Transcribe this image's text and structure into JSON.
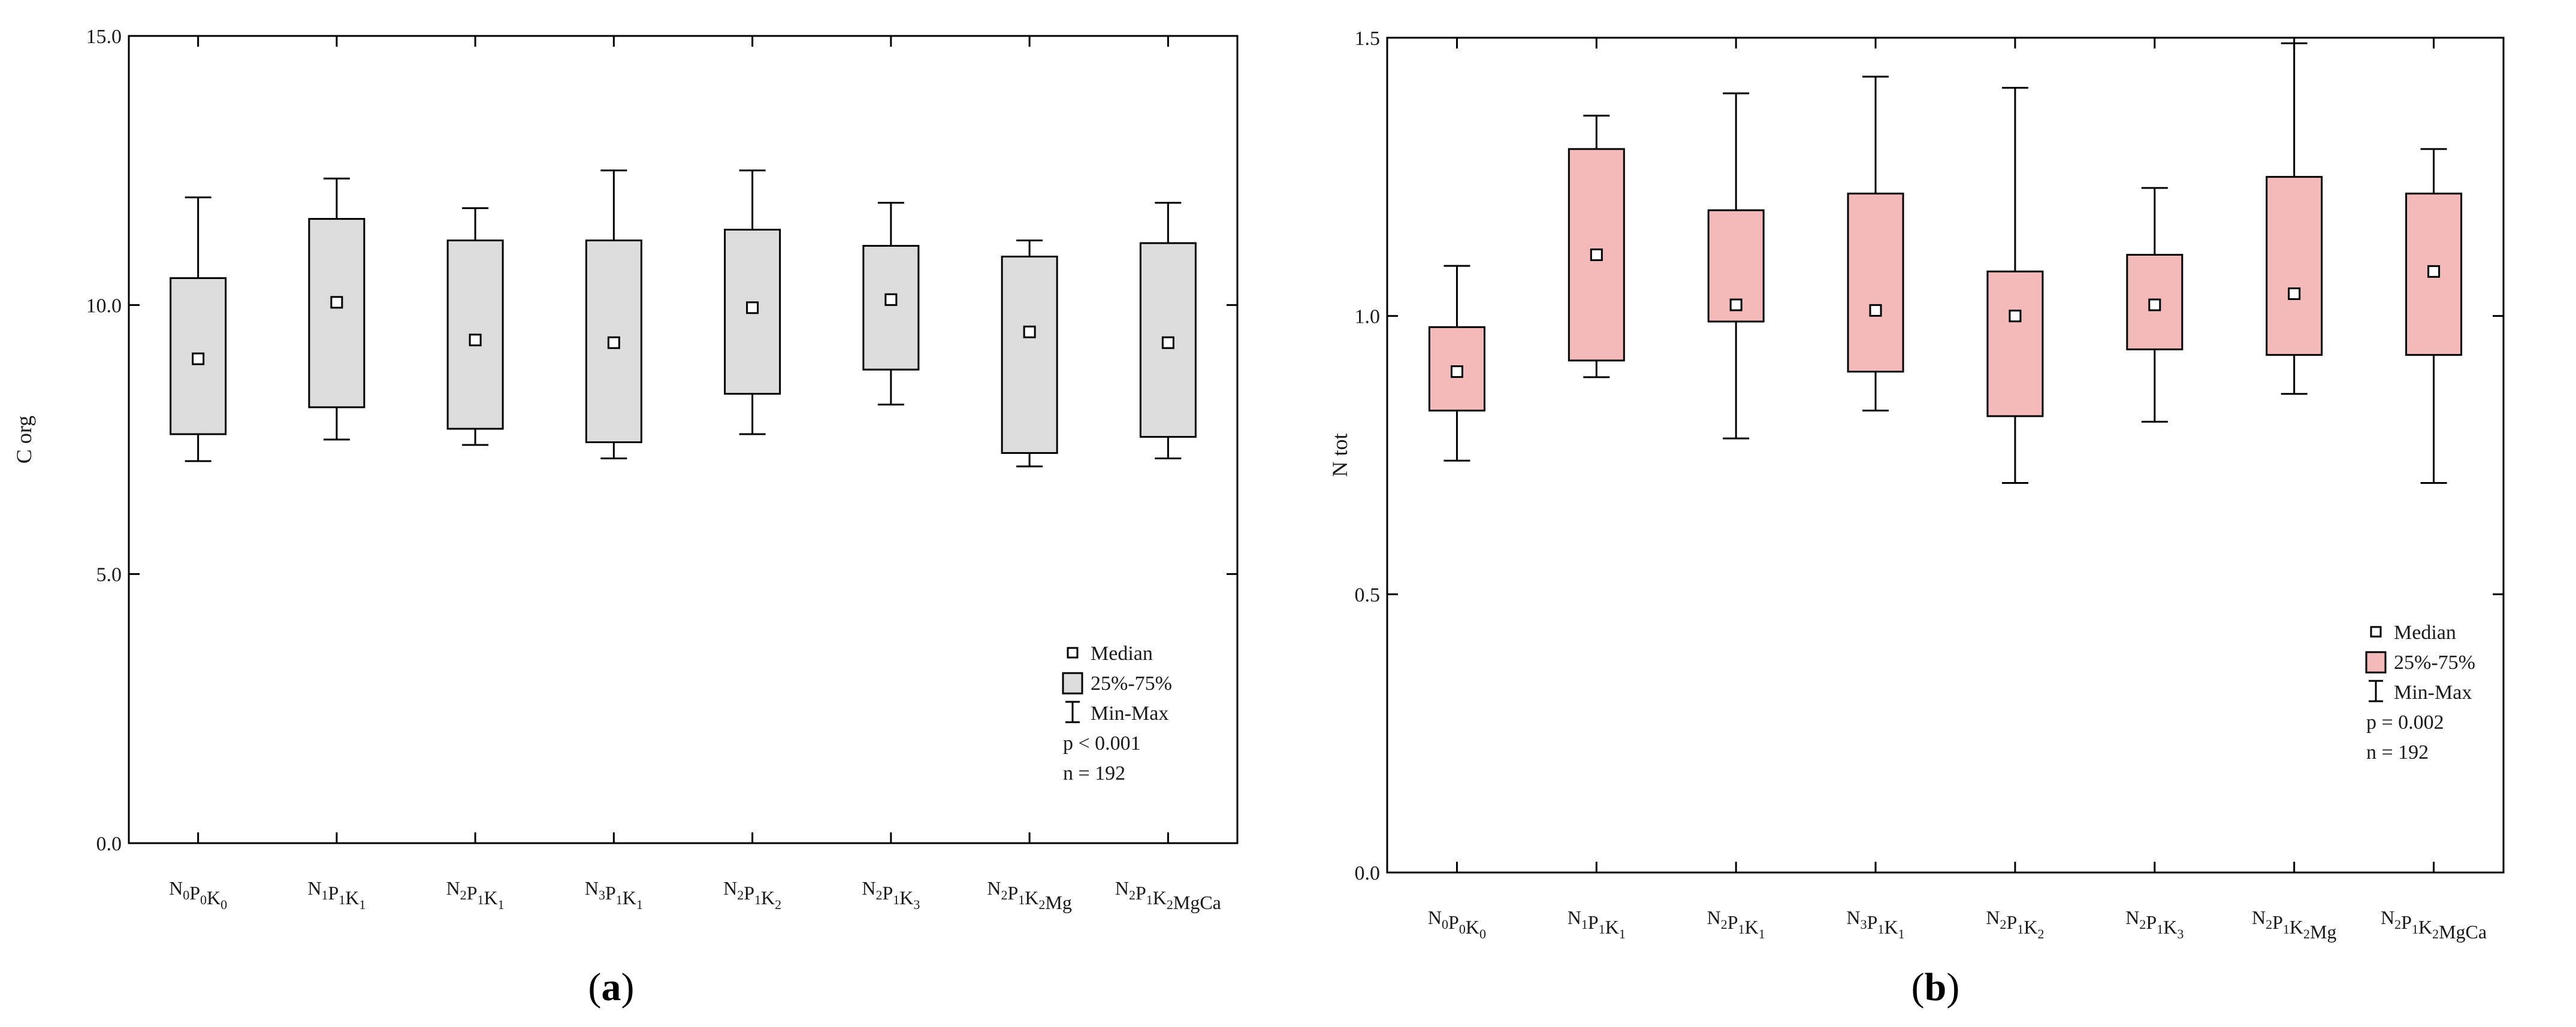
{
  "categories": [
    [
      "N",
      "0",
      "P",
      "0",
      "K",
      "0"
    ],
    [
      "N",
      "1",
      "P",
      "1",
      "K",
      "1"
    ],
    [
      "N",
      "2",
      "P",
      "1",
      "K",
      "1"
    ],
    [
      "N",
      "3",
      "P",
      "1",
      "K",
      "1"
    ],
    [
      "N",
      "2",
      "P",
      "1",
      "K",
      "2"
    ],
    [
      "N",
      "2",
      "P",
      "1",
      "K",
      "3"
    ],
    [
      "N",
      "2",
      "P",
      "1",
      "K",
      "2",
      "Mg",
      ""
    ],
    [
      "N",
      "2",
      "P",
      "1",
      "K",
      "2",
      "MgCa",
      ""
    ]
  ],
  "category_text": [
    "N0P0K0",
    "N1P1K1",
    "N2P1K1",
    "N3P1K1",
    "N2P1K2",
    "N2P1K3",
    "N2P1K2Mg",
    "N2P1K2MgCa"
  ],
  "chart_data": [
    {
      "type": "box",
      "panel": "a",
      "panel_label": "(a)",
      "ylabel": "C org",
      "ylim": [
        0.0,
        15.0
      ],
      "yticks": [
        "0.0",
        "5.0",
        "10.0",
        "15.0"
      ],
      "ytick_values": [
        0,
        5,
        10,
        15
      ],
      "fill": "#dcdcdc",
      "stats": [
        {
          "min": 7.1,
          "q1": 7.6,
          "median": 9.0,
          "q3": 10.5,
          "max": 12.0
        },
        {
          "min": 7.5,
          "q1": 8.1,
          "median": 10.05,
          "q3": 11.6,
          "max": 12.35
        },
        {
          "min": 7.4,
          "q1": 7.7,
          "median": 9.35,
          "q3": 11.2,
          "max": 11.8
        },
        {
          "min": 7.15,
          "q1": 7.45,
          "median": 9.3,
          "q3": 11.2,
          "max": 12.5
        },
        {
          "min": 7.6,
          "q1": 8.35,
          "median": 9.95,
          "q3": 11.4,
          "max": 12.5
        },
        {
          "min": 8.15,
          "q1": 8.8,
          "median": 10.1,
          "q3": 11.1,
          "max": 11.9
        },
        {
          "min": 7.0,
          "q1": 7.25,
          "median": 9.5,
          "q3": 10.9,
          "max": 11.2
        },
        {
          "min": 7.15,
          "q1": 7.55,
          "median": 9.3,
          "q3": 11.15,
          "max": 11.9
        }
      ],
      "legend": {
        "median": "Median",
        "box": "25%-75%",
        "whisker": "Min-Max",
        "p": "p < 0.001",
        "n": "n = 192"
      }
    },
    {
      "type": "box",
      "panel": "b",
      "panel_label": "(b)",
      "ylabel": "N tot",
      "ylim": [
        0.0,
        1.5
      ],
      "yticks": [
        "0.0",
        "0.5",
        "1.0",
        "1.5"
      ],
      "ytick_values": [
        0,
        0.5,
        1.0,
        1.5
      ],
      "fill": "#f4b9b9",
      "stats": [
        {
          "min": 0.74,
          "q1": 0.83,
          "median": 0.9,
          "q3": 0.98,
          "max": 1.09
        },
        {
          "min": 0.89,
          "q1": 0.92,
          "median": 1.11,
          "q3": 1.3,
          "max": 1.36
        },
        {
          "min": 0.78,
          "q1": 0.99,
          "median": 1.02,
          "q3": 1.19,
          "max": 1.4
        },
        {
          "min": 0.83,
          "q1": 0.9,
          "median": 1.01,
          "q3": 1.22,
          "max": 1.43
        },
        {
          "min": 0.7,
          "q1": 0.82,
          "median": 1.0,
          "q3": 1.08,
          "max": 1.41
        },
        {
          "min": 0.81,
          "q1": 0.94,
          "median": 1.02,
          "q3": 1.11,
          "max": 1.23
        },
        {
          "min": 0.86,
          "q1": 0.93,
          "median": 1.04,
          "q3": 1.25,
          "max": 1.49
        },
        {
          "min": 0.7,
          "q1": 0.93,
          "median": 1.08,
          "q3": 1.22,
          "max": 1.3
        }
      ],
      "legend": {
        "median": "Median",
        "box": "25%-75%",
        "whisker": "Min-Max",
        "p": "p = 0.002",
        "n": "n = 192"
      }
    }
  ]
}
